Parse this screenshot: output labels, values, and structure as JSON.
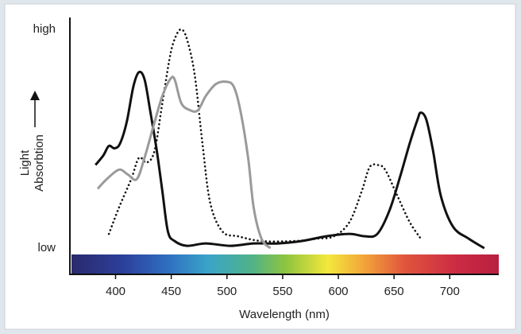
{
  "chart_data": {
    "type": "line",
    "xlabel": "Wavelength (nm)",
    "ylabel": [
      "Light",
      "Absorbtion"
    ],
    "xlim": [
      359,
      744
    ],
    "xticks": [
      400,
      450,
      500,
      550,
      600,
      650,
      700
    ],
    "ylim": [
      -8,
      100
    ],
    "yticks": [
      {
        "value": 3,
        "label": "low"
      },
      {
        "value": 95,
        "label": "high"
      }
    ],
    "series": [
      {
        "color": "#111111",
        "dash": false,
        "x": [
          382,
          389,
          394,
          399,
          404,
          410,
          416,
          421,
          426,
          431,
          437,
          442,
          447,
          453,
          464,
          481,
          503,
          524,
          546,
          567,
          589,
          610,
          624,
          635,
          646,
          656,
          664,
          671,
          674,
          679,
          685,
          692,
          703,
          717,
          731
        ],
        "values": [
          38,
          42,
          46,
          45,
          47,
          56,
          71,
          77,
          74,
          61,
          44,
          27,
          10,
          6,
          4,
          5,
          4,
          5,
          5,
          6,
          8,
          9,
          8,
          9,
          19,
          34,
          47,
          57,
          60,
          57,
          44,
          25,
          12,
          7,
          3
        ]
      },
      {
        "color": "#111111",
        "dash": true,
        "x": [
          394,
          403,
          414,
          421,
          428,
          435,
          442,
          449,
          454,
          459,
          464,
          471,
          478,
          485,
          496,
          510,
          531,
          560,
          581,
          596,
          610,
          621,
          628,
          635,
          642,
          653,
          664,
          674
        ],
        "values": [
          9,
          20,
          32,
          41,
          39,
          44,
          64,
          84,
          92,
          95,
          91,
          76,
          47,
          22,
          10,
          8,
          6,
          6,
          7,
          8,
          14,
          27,
          37,
          38,
          36,
          25,
          14,
          7
        ]
      },
      {
        "color": "#9a9a9a",
        "dash": false,
        "x": [
          384,
          392,
          403,
          411,
          419,
          426,
          435,
          442,
          449,
          453,
          459,
          467,
          474,
          481,
          490,
          499,
          506,
          512,
          519,
          524,
          531,
          539
        ],
        "values": [
          28,
          32,
          36,
          34,
          32,
          41,
          56,
          67,
          74,
          74,
          64,
          61,
          61,
          67,
          72,
          73,
          71,
          61,
          41,
          20,
          7,
          3
        ]
      }
    ]
  }
}
